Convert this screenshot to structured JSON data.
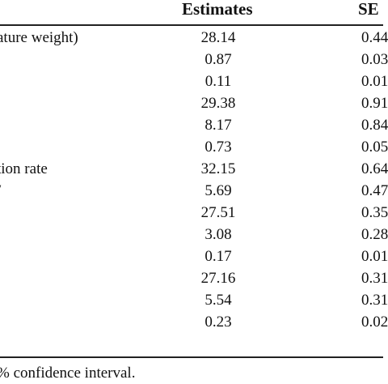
{
  "table": {
    "headers": {
      "estimates": "Estimates",
      "se": "SE"
    },
    "rows": [
      {
        "label": "ature weight)",
        "estimate": "28.14",
        "se": "0.44"
      },
      {
        "label": "",
        "estimate": "0.87",
        "se": "0.03"
      },
      {
        "label": "",
        "estimate": "0.11",
        "se": "0.01"
      },
      {
        "label": "",
        "estimate": "29.38",
        "se": "0.91"
      },
      {
        "label": "",
        "estimate": "8.17",
        "se": "0.84"
      },
      {
        "label": "",
        "estimate": "0.73",
        "se": "0.05"
      },
      {
        "label": "tion rate",
        "estimate": "32.15",
        "se": "0.64"
      },
      {
        "label": "/",
        "estimate": "5.69",
        "se": "0.47"
      },
      {
        "label": "",
        "estimate": "27.51",
        "se": "0.35"
      },
      {
        "label": "",
        "estimate": "3.08",
        "se": "0.28"
      },
      {
        "label": "",
        "estimate": "0.17",
        "se": "0.01"
      },
      {
        "label": "",
        "estimate": "27.16",
        "se": "0.31"
      },
      {
        "label": "",
        "estimate": "5.54",
        "se": "0.31"
      },
      {
        "label": "",
        "estimate": "0.23",
        "se": "0.02"
      }
    ],
    "footnote": "% confidence interval."
  }
}
